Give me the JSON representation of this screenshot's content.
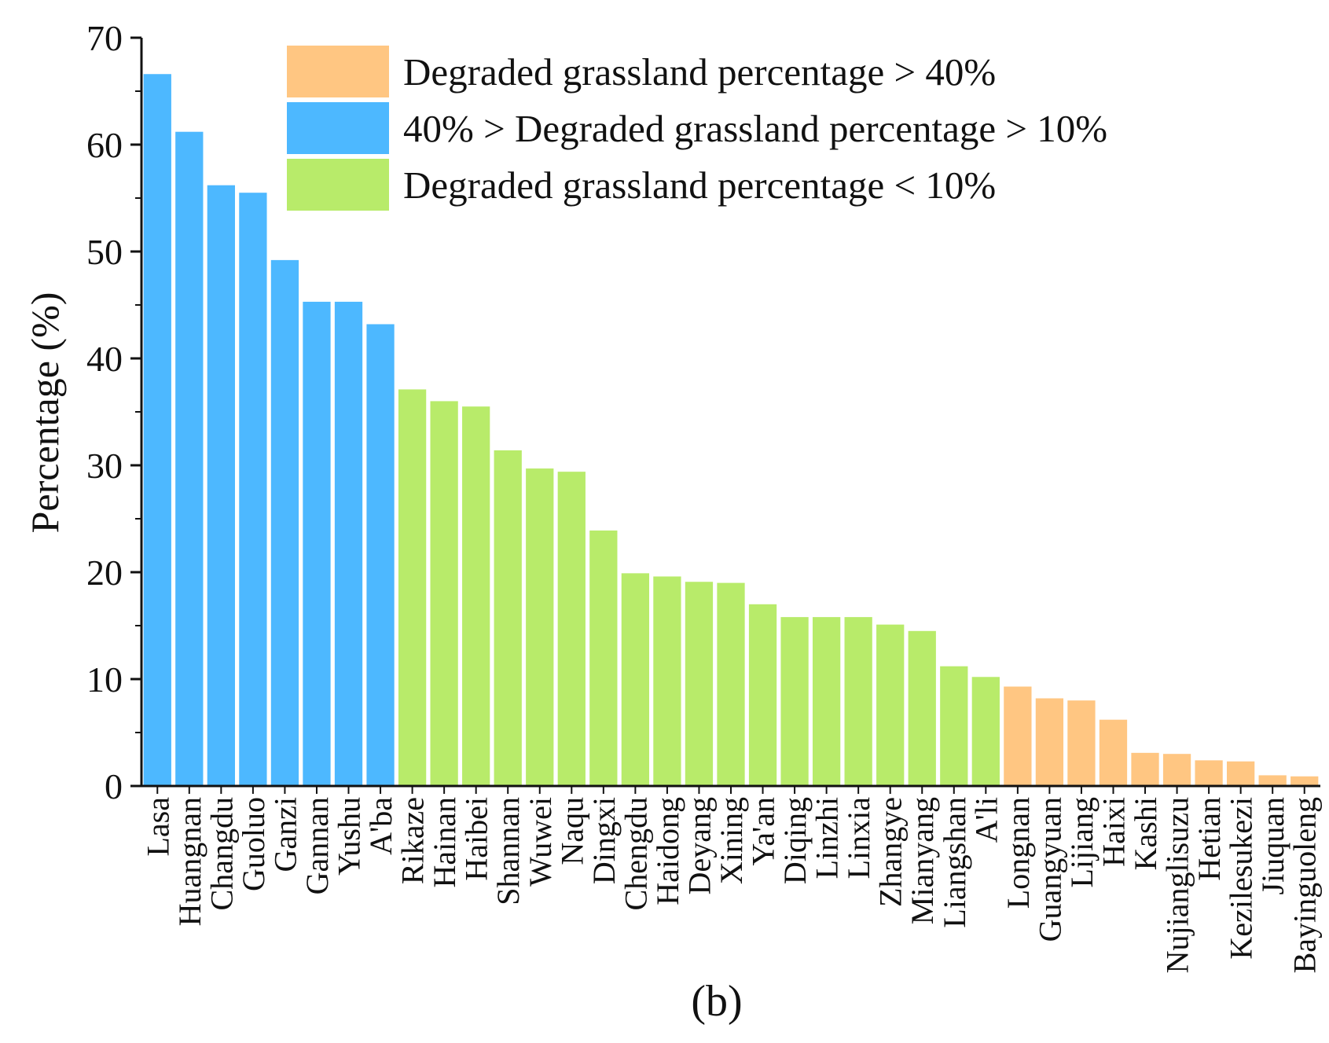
{
  "chart_data": {
    "type": "bar",
    "ylabel": "Percentage (%)",
    "xlabel": "",
    "panel_label": "(b)",
    "ylim": [
      0,
      70
    ],
    "yticks": [
      "0",
      "10",
      "20",
      "30",
      "40",
      "50",
      "60",
      "70"
    ],
    "categories": [
      "Lasa",
      "Huangnan",
      "Changdu",
      "Guoluo",
      "Ganzi",
      "Gannan",
      "Yushu",
      "A'ba",
      "Rikaze",
      "Hainan",
      "Haibei",
      "Shannan",
      "Wuwei",
      "Naqu",
      "Dingxi",
      "Chengdu",
      "Haidong",
      "Deyang",
      "Xining",
      "Ya'an",
      "Diqing",
      "Linzhi",
      "Linxia",
      "Zhangye",
      "Mianyang",
      "Liangshan",
      "A'li",
      "Longnan",
      "Guangyuan",
      "Lijiang",
      "Haixi",
      "Kashi",
      "Nujianglisuzu",
      "Hetian",
      "Kezilesukezi",
      "Jiuquan",
      "Bayinguoleng"
    ],
    "values": [
      66.6,
      61.2,
      56.2,
      55.5,
      49.2,
      45.3,
      45.3,
      43.2,
      37.1,
      36.0,
      35.5,
      31.4,
      29.7,
      29.4,
      23.9,
      19.9,
      19.6,
      19.1,
      19.0,
      17.0,
      15.8,
      15.8,
      15.8,
      15.1,
      14.5,
      11.2,
      10.2,
      9.3,
      8.2,
      8.0,
      6.2,
      3.1,
      3.0,
      2.4,
      2.3,
      1.0,
      0.9
    ],
    "group": [
      "mid",
      "mid",
      "mid",
      "mid",
      "mid",
      "mid",
      "mid",
      "mid",
      "low",
      "low",
      "low",
      "low",
      "low",
      "low",
      "low",
      "low",
      "low",
      "low",
      "low",
      "low",
      "low",
      "low",
      "low",
      "low",
      "low",
      "low",
      "low",
      "high",
      "high",
      "high",
      "high",
      "high",
      "high",
      "high",
      "high",
      "high",
      "high"
    ],
    "legend": [
      {
        "key": "high",
        "label": "Degraded grassland percentage >  40%",
        "color": "#FFC682"
      },
      {
        "key": "mid",
        "label": "40% > Degraded grassland percentage >  10%",
        "color": "#4DB8FF"
      },
      {
        "key": "low",
        "label": "Degraded grassland percentage < 10%",
        "color": "#B8EB6A"
      }
    ],
    "legend_position": "top-right",
    "grid": false
  }
}
